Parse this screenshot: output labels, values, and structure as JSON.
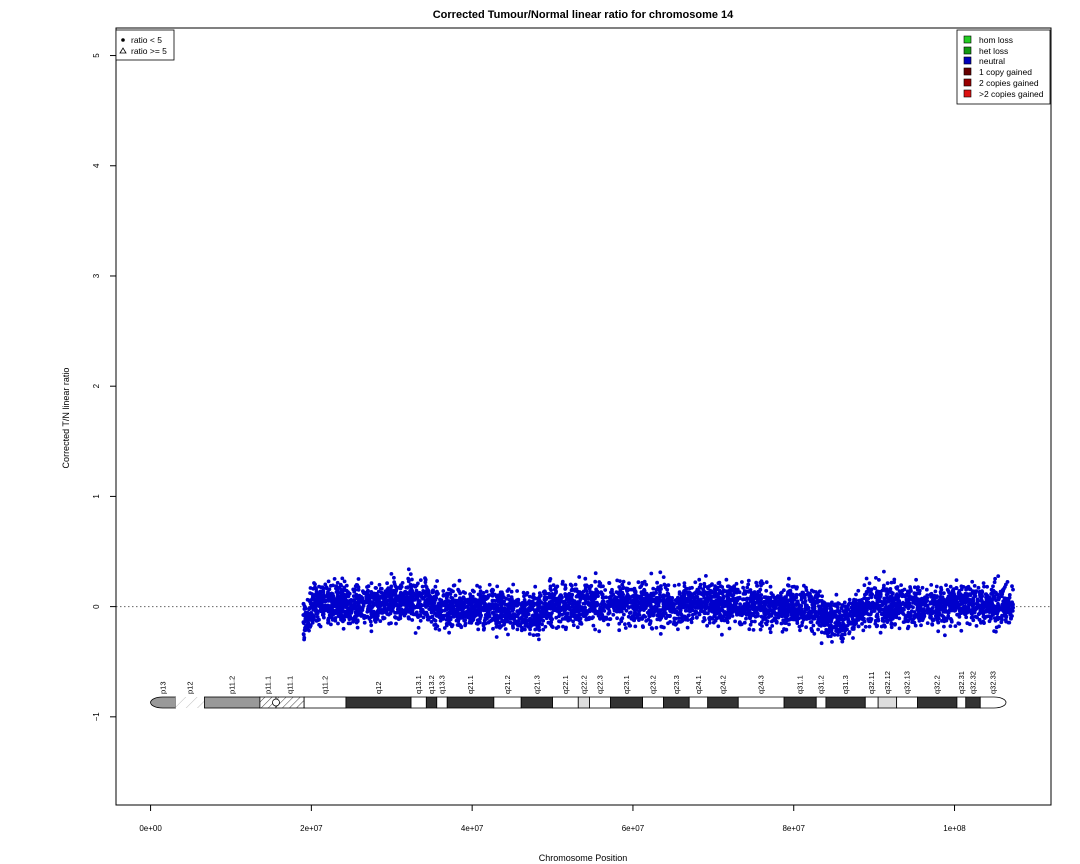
{
  "chart_data": {
    "type": "scatter",
    "title": "Corrected Tumour/Normal linear ratio for chromosome  14",
    "xlabel": "Chromosome Position",
    "ylabel": "Corrected T/N linear ratio",
    "xlim": [
      -4300000,
      112000000
    ],
    "ylim": [
      -1.8,
      5.25
    ],
    "xticks": [
      0,
      20000000,
      40000000,
      60000000,
      80000000,
      100000000
    ],
    "xtick_labels": [
      "0e+00",
      "2e+07",
      "4e+07",
      "6e+07",
      "8e+07",
      "1e+08"
    ],
    "yticks": [
      -1,
      0,
      1,
      2,
      3,
      4,
      5
    ],
    "ytick_labels": [
      "−1",
      "0",
      "1",
      "2",
      "3",
      "4",
      "5"
    ],
    "reference_line_y": 0,
    "data_range_x": [
      19000000,
      107300000
    ],
    "series": [
      {
        "name": "neutral",
        "color": "#0000cc",
        "marker": "dot",
        "smoothed_profile": {
          "x": [
            19000000,
            20000000,
            22000000,
            25000000,
            28000000,
            30000000,
            33000000,
            36000000,
            39000000,
            42000000,
            45000000,
            48000000,
            50000000,
            53000000,
            56000000,
            60000000,
            63000000,
            66000000,
            68000000,
            71000000,
            74000000,
            77000000,
            80000000,
            83000000,
            85000000,
            87000000,
            89000000,
            92000000,
            95000000,
            98000000,
            100000000,
            103000000,
            107300000
          ],
          "y": [
            -0.15,
            0.02,
            0.03,
            0.02,
            0.03,
            0.04,
            0.05,
            0.0,
            -0.01,
            -0.03,
            -0.04,
            -0.06,
            0.02,
            0.02,
            0.03,
            0.03,
            0.02,
            0.0,
            0.07,
            0.03,
            0.02,
            0.01,
            0.0,
            -0.04,
            -0.12,
            -0.1,
            0.02,
            0.0,
            0.01,
            0.0,
            0.04,
            0.03,
            0.0
          ]
        },
        "typical_spread": 0.25,
        "max_value": 0.9,
        "min_value": -0.55
      }
    ],
    "legend_shape": {
      "position": "top-left",
      "entries": [
        {
          "label": "ratio < 5",
          "marker": "filled-circle"
        },
        {
          "label": "ratio >= 5",
          "marker": "open-triangle"
        }
      ]
    },
    "legend_status": {
      "position": "top-right",
      "entries": [
        {
          "label": "hom loss",
          "color": "#22cc22"
        },
        {
          "label": "het loss",
          "color": "#119911"
        },
        {
          "label": "neutral",
          "color": "#0000bb"
        },
        {
          "label": "1 copy gained",
          "color": "#660000"
        },
        {
          "label": "2 copies gained",
          "color": "#990000"
        },
        {
          "label": ">2 copies gained",
          "color": "#dd1111"
        }
      ]
    },
    "ideogram": {
      "y": -0.87,
      "bands": [
        {
          "name": "p13",
          "start": 0,
          "end": 3100000,
          "stain": "gvar"
        },
        {
          "name": "p12",
          "start": 3100000,
          "end": 6700000,
          "stain": "stalk"
        },
        {
          "name": "p11.2",
          "start": 6700000,
          "end": 13600000,
          "stain": "gvar"
        },
        {
          "name": "p11.1",
          "start": 13600000,
          "end": 15600000,
          "stain": "acen"
        },
        {
          "name": "q11.1",
          "start": 15600000,
          "end": 19100000,
          "stain": "acen"
        },
        {
          "name": "q11.2",
          "start": 19100000,
          "end": 24300000,
          "stain": "gneg"
        },
        {
          "name": "q12",
          "start": 24300000,
          "end": 32400000,
          "stain": "gpos100"
        },
        {
          "name": "q13.1",
          "start": 32400000,
          "end": 34300000,
          "stain": "gneg"
        },
        {
          "name": "q13.2",
          "start": 34300000,
          "end": 35600000,
          "stain": "gpos50"
        },
        {
          "name": "q13.3",
          "start": 35600000,
          "end": 36900000,
          "stain": "gneg"
        },
        {
          "name": "q21.1",
          "start": 36900000,
          "end": 42700000,
          "stain": "gpos100"
        },
        {
          "name": "q21.2",
          "start": 42700000,
          "end": 46100000,
          "stain": "gneg"
        },
        {
          "name": "q21.3",
          "start": 46100000,
          "end": 50000000,
          "stain": "gpos100"
        },
        {
          "name": "q22.1",
          "start": 50000000,
          "end": 53200000,
          "stain": "gneg"
        },
        {
          "name": "q22.2",
          "start": 53200000,
          "end": 54600000,
          "stain": "gpos25"
        },
        {
          "name": "q22.3",
          "start": 54600000,
          "end": 57200000,
          "stain": "gneg"
        },
        {
          "name": "q23.1",
          "start": 57200000,
          "end": 61200000,
          "stain": "gpos75"
        },
        {
          "name": "q23.2",
          "start": 61200000,
          "end": 63800000,
          "stain": "gneg"
        },
        {
          "name": "q23.3",
          "start": 63800000,
          "end": 67000000,
          "stain": "gpos50"
        },
        {
          "name": "q24.1",
          "start": 67000000,
          "end": 69300000,
          "stain": "gneg"
        },
        {
          "name": "q24.2",
          "start": 69300000,
          "end": 73100000,
          "stain": "gpos50"
        },
        {
          "name": "q24.3",
          "start": 73100000,
          "end": 78800000,
          "stain": "gneg"
        },
        {
          "name": "q31.1",
          "start": 78800000,
          "end": 82800000,
          "stain": "gpos100"
        },
        {
          "name": "q31.2",
          "start": 82800000,
          "end": 84000000,
          "stain": "gneg"
        },
        {
          "name": "q31.3",
          "start": 84000000,
          "end": 88900000,
          "stain": "gpos100"
        },
        {
          "name": "q32.11",
          "start": 88900000,
          "end": 90500000,
          "stain": "gneg"
        },
        {
          "name": "q32.12",
          "start": 90500000,
          "end": 92800000,
          "stain": "gpos25"
        },
        {
          "name": "q32.13",
          "start": 92800000,
          "end": 95400000,
          "stain": "gneg"
        },
        {
          "name": "q32.2",
          "start": 95400000,
          "end": 100300000,
          "stain": "gpos50"
        },
        {
          "name": "q32.31",
          "start": 100300000,
          "end": 101400000,
          "stain": "gneg"
        },
        {
          "name": "q32.32",
          "start": 101400000,
          "end": 103200000,
          "stain": "gpos50"
        },
        {
          "name": "q32.33",
          "start": 103200000,
          "end": 106400000,
          "stain": "gneg"
        }
      ]
    }
  }
}
